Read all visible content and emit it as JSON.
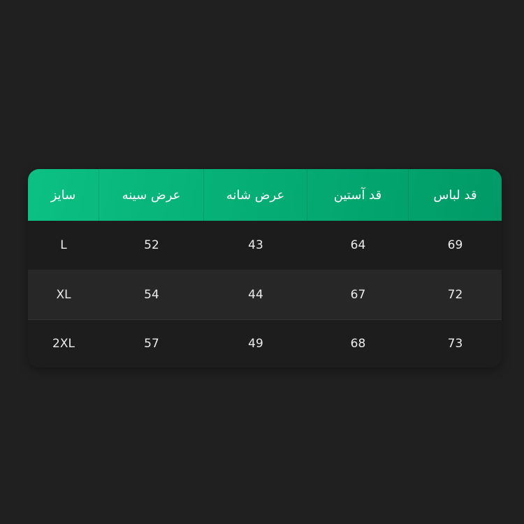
{
  "table": {
    "headers": [
      "سایز",
      "عرض سینه",
      "عرض شانه",
      "قد آستین",
      "قد لباس"
    ],
    "rows": [
      [
        "L",
        "52",
        "43",
        "64",
        "69"
      ],
      [
        "XL",
        "54",
        "44",
        "67",
        "72"
      ],
      [
        "2XL",
        "57",
        "49",
        "68",
        "73"
      ]
    ]
  },
  "colors": {
    "header_start": "#0cc083",
    "header_end": "#009a67",
    "background": "#202020"
  }
}
